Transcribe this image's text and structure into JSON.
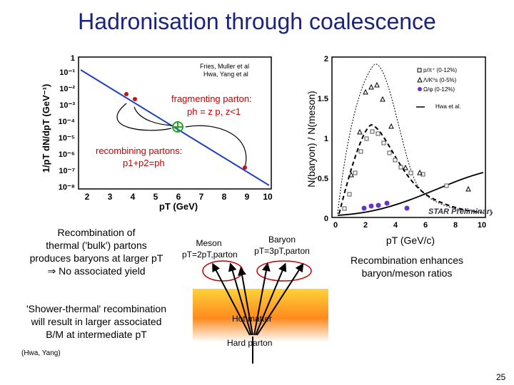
{
  "slide": {
    "title": "Hadronisation through coalescence",
    "page_number": "25"
  },
  "left_plot": {
    "ylabel": "1/pT dN/dpT (GeV⁻¹)",
    "xlabel": "pT (GeV)",
    "y_ticks": [
      "1",
      "10⁻¹",
      "10⁻²",
      "10⁻³",
      "10⁻⁴",
      "10⁻⁵",
      "10⁻⁶",
      "10⁻⁷",
      "10⁻⁸"
    ],
    "x_ticks": [
      "2",
      "3",
      "4",
      "5",
      "6",
      "7",
      "8",
      "9",
      "10"
    ],
    "reference_line1": "Fries, Muller et al",
    "reference_line2": "Hwa, Yang et al",
    "fragmenting_title": "fragmenting parton:",
    "fragmenting_formula": "ph = z p, z<1",
    "recombining_title": "recombining partons:",
    "recombining_formula": "p1+p2=ph"
  },
  "right_plot": {
    "ylabel": "N(baryon) / N(meson)",
    "xlabel": "pT  (GeV/c)",
    "y_ticks": [
      "0",
      "0.5",
      "1",
      "1.5",
      "2"
    ],
    "x_ticks": [
      "0",
      "2",
      "4",
      "6",
      "8",
      "10"
    ],
    "legend": [
      "p/π⁺ (0-12%)",
      "Λ/K⁰s (0-5%)",
      "Ω/φ (0-12%)",
      "Hwa et al."
    ],
    "watermark": "STAR Preliminary"
  },
  "text_blocks": {
    "recombination_thermal": [
      "Recombination of",
      "thermal ('bulk') partons",
      "produces baryons at larger pT",
      "⇒ No associated yield"
    ],
    "shower_thermal": [
      "'Shower-thermal' recombination",
      "will result in larger associated",
      "B/M at intermediate pT"
    ],
    "citation": "(Hwa, Yang)",
    "enhances": [
      "Recombination enhances",
      "baryon/meson ratios"
    ]
  },
  "diagram": {
    "meson_label": "Meson",
    "meson_formula": "pT=2pT,parton",
    "baryon_label": "Baryon",
    "baryon_formula": "pT=3pT,parton",
    "hot_matter": "Hot matter",
    "hard_parton": "Hard parton"
  },
  "colors": {
    "title": "#1a237e",
    "fragment_text": "#cc0000",
    "line": "#1f3fbf",
    "point": "#cc1111",
    "green": "#22aa22",
    "omega": "#6633cc"
  }
}
